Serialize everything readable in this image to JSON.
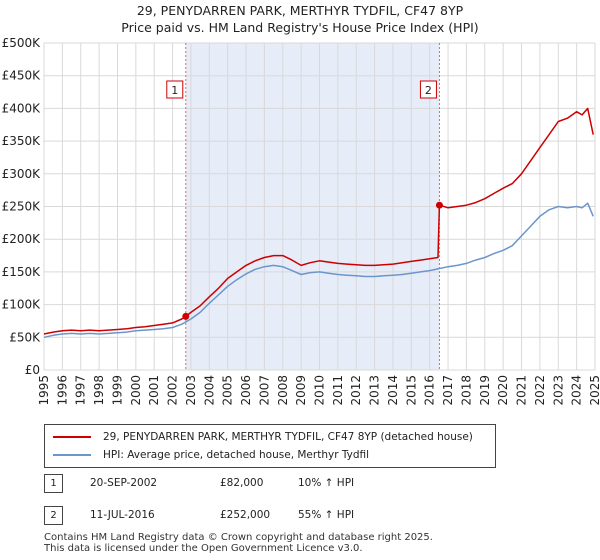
{
  "chart_data": {
    "type": "line",
    "title": "29, PENYDARREN PARK, MERTHYR TYDFIL, CF47 8YP",
    "subtitle": "Price paid vs. HM Land Registry's House Price Index (HPI)",
    "xlabel": "",
    "ylabel": "",
    "xlim": [
      1995,
      2025
    ],
    "ylim": [
      0,
      500000
    ],
    "y_ticks": [
      0,
      50000,
      100000,
      150000,
      200000,
      250000,
      300000,
      350000,
      400000,
      450000,
      500000
    ],
    "y_tick_labels": [
      "£0",
      "£50K",
      "£100K",
      "£150K",
      "£200K",
      "£250K",
      "£300K",
      "£350K",
      "£400K",
      "£450K",
      "£500K"
    ],
    "x_ticks": [
      1995,
      1996,
      1997,
      1998,
      1999,
      2000,
      2001,
      2002,
      2003,
      2004,
      2005,
      2006,
      2007,
      2008,
      2009,
      2010,
      2011,
      2012,
      2013,
      2014,
      2015,
      2016,
      2017,
      2018,
      2019,
      2020,
      2021,
      2022,
      2023,
      2024,
      2025
    ],
    "x_tick_labels": [
      "1995",
      "1996",
      "1997",
      "1998",
      "1999",
      "2000",
      "2001",
      "2002",
      "2003",
      "2004",
      "2005",
      "2006",
      "2007",
      "2008",
      "2009",
      "2010",
      "2011",
      "2012",
      "2013",
      "2014",
      "2015",
      "2016",
      "2017",
      "2018",
      "2019",
      "2020",
      "2021",
      "2022",
      "2023",
      "2024",
      "2025"
    ],
    "grid": true,
    "shaded_region": [
      2002.72,
      2016.53
    ],
    "series": [
      {
        "name": "29, PENYDARREN PARK, MERTHYR TYDFIL, CF47 8YP (detached house)",
        "color": "#cc0000",
        "x": [
          1995.0,
          1995.5,
          1996.0,
          1996.5,
          1997.0,
          1997.5,
          1998.0,
          1998.5,
          1999.0,
          1999.5,
          2000.0,
          2000.5,
          2001.0,
          2001.5,
          2002.0,
          2002.5,
          2002.72,
          2003.0,
          2003.5,
          2004.0,
          2004.5,
          2005.0,
          2005.5,
          2006.0,
          2006.5,
          2007.0,
          2007.5,
          2008.0,
          2008.5,
          2009.0,
          2009.5,
          2010.0,
          2010.5,
          2011.0,
          2011.5,
          2012.0,
          2012.5,
          2013.0,
          2013.5,
          2014.0,
          2014.5,
          2015.0,
          2015.5,
          2016.0,
          2016.45,
          2016.53,
          2017.0,
          2017.5,
          2018.0,
          2018.5,
          2019.0,
          2019.5,
          2020.0,
          2020.5,
          2021.0,
          2021.5,
          2022.0,
          2022.5,
          2023.0,
          2023.5,
          2024.0,
          2024.3,
          2024.6,
          2024.9
        ],
        "values": [
          55000,
          58000,
          60000,
          61000,
          60000,
          61000,
          60000,
          61000,
          62000,
          63000,
          65000,
          66000,
          68000,
          70000,
          72000,
          78000,
          82000,
          88000,
          98000,
          112000,
          125000,
          140000,
          150000,
          160000,
          167000,
          172000,
          175000,
          175000,
          168000,
          160000,
          164000,
          167000,
          165000,
          163000,
          162000,
          161000,
          160000,
          160000,
          161000,
          162000,
          164000,
          166000,
          168000,
          170000,
          172000,
          252000,
          248000,
          250000,
          252000,
          256000,
          262000,
          270000,
          278000,
          285000,
          300000,
          320000,
          340000,
          360000,
          380000,
          385000,
          395000,
          390000,
          400000,
          360000
        ]
      },
      {
        "name": "HPI: Average price, detached house, Merthyr Tydfil",
        "color": "#6b96cc",
        "x": [
          1995.0,
          1995.5,
          1996.0,
          1996.5,
          1997.0,
          1997.5,
          1998.0,
          1998.5,
          1999.0,
          1999.5,
          2000.0,
          2000.5,
          2001.0,
          2001.5,
          2002.0,
          2002.5,
          2003.0,
          2003.5,
          2004.0,
          2004.5,
          2005.0,
          2005.5,
          2006.0,
          2006.5,
          2007.0,
          2007.5,
          2008.0,
          2008.5,
          2009.0,
          2009.5,
          2010.0,
          2010.5,
          2011.0,
          2011.5,
          2012.0,
          2012.5,
          2013.0,
          2013.5,
          2014.0,
          2014.5,
          2015.0,
          2015.5,
          2016.0,
          2016.5,
          2017.0,
          2017.5,
          2018.0,
          2018.5,
          2019.0,
          2019.5,
          2020.0,
          2020.5,
          2021.0,
          2021.5,
          2022.0,
          2022.5,
          2023.0,
          2023.5,
          2024.0,
          2024.3,
          2024.6,
          2024.9
        ],
        "values": [
          50000,
          53000,
          55000,
          56000,
          55000,
          56000,
          55000,
          56000,
          57000,
          58000,
          60000,
          61000,
          62000,
          63000,
          65000,
          70000,
          78000,
          88000,
          102000,
          115000,
          128000,
          138000,
          147000,
          154000,
          158000,
          160000,
          158000,
          152000,
          146000,
          149000,
          150000,
          148000,
          146000,
          145000,
          144000,
          143000,
          143000,
          144000,
          145000,
          146000,
          148000,
          150000,
          152000,
          155000,
          158000,
          160000,
          163000,
          168000,
          172000,
          178000,
          183000,
          190000,
          205000,
          220000,
          235000,
          245000,
          250000,
          248000,
          250000,
          248000,
          255000,
          235000
        ]
      }
    ],
    "annotations": [
      {
        "label": "1",
        "x": 2002.72,
        "value": 82000,
        "date": "20-SEP-2002",
        "price": "£82,000",
        "hpi": "10% ↑ HPI"
      },
      {
        "label": "2",
        "x": 2016.53,
        "value": 252000,
        "date": "11-JUL-2016",
        "price": "£252,000",
        "hpi": "55% ↑ HPI"
      }
    ]
  },
  "legend": {
    "red_label": "29, PENYDARREN PARK, MERTHYR TYDFIL, CF47 8YP (detached house)",
    "blue_label": "HPI: Average price, detached house, Merthyr Tydfil"
  },
  "transactions": [
    {
      "num": "1",
      "date": "20-SEP-2002",
      "price": "£82,000",
      "hpi": "10% ↑ HPI"
    },
    {
      "num": "2",
      "date": "11-JUL-2016",
      "price": "£252,000",
      "hpi": "55% ↑ HPI"
    }
  ],
  "footer": {
    "line1": "Contains HM Land Registry data © Crown copyright and database right 2025.",
    "line2": "This data is licensed under the Open Government Licence v3.0."
  }
}
